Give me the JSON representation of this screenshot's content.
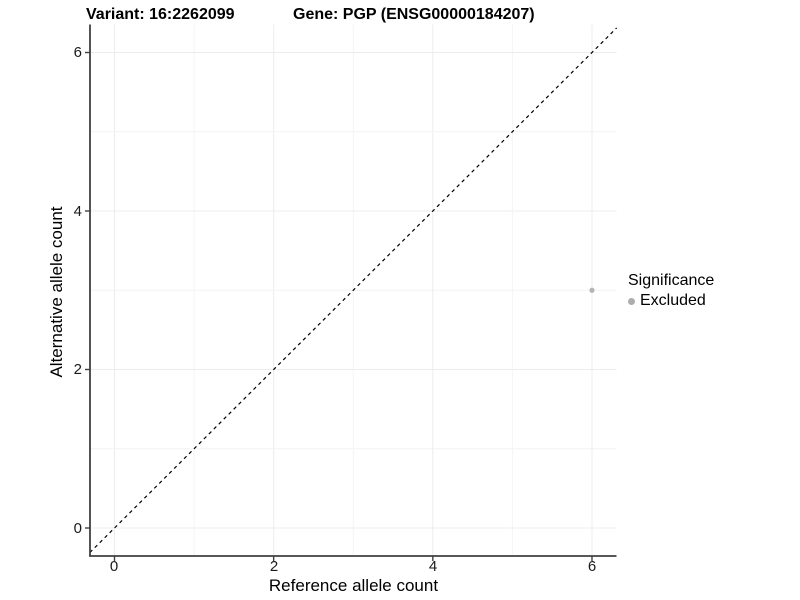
{
  "titles": {
    "variant": "Variant: 16:2262099",
    "gene": "Gene: PGP (ENSG00000184207)"
  },
  "chart_data": {
    "type": "scatter",
    "xlabel": "Reference allele count",
    "ylabel": "Alternative allele count",
    "xlim": [
      -0.31,
      6.31
    ],
    "ylim": [
      -0.35,
      6.35
    ],
    "x_ticks": [
      0,
      2,
      4,
      6
    ],
    "y_ticks": [
      0,
      2,
      4,
      6
    ],
    "grid": {
      "major_every": 2,
      "minor_every": 1,
      "major_color": "#ececec",
      "minor_color": "#f4f4f4"
    },
    "points": [
      {
        "x": 6,
        "y": 3,
        "significance": "Excluded",
        "color": "#b5b5b5",
        "radius_px": 2.6
      }
    ],
    "reference_line": {
      "kind": "identity y=x",
      "style": "dashed",
      "color": "#000000"
    },
    "legend": {
      "title": "Significance",
      "position": "right",
      "entries": [
        {
          "label": "Excluded",
          "color": "#adadad"
        }
      ]
    },
    "axis_color": "#404040"
  }
}
